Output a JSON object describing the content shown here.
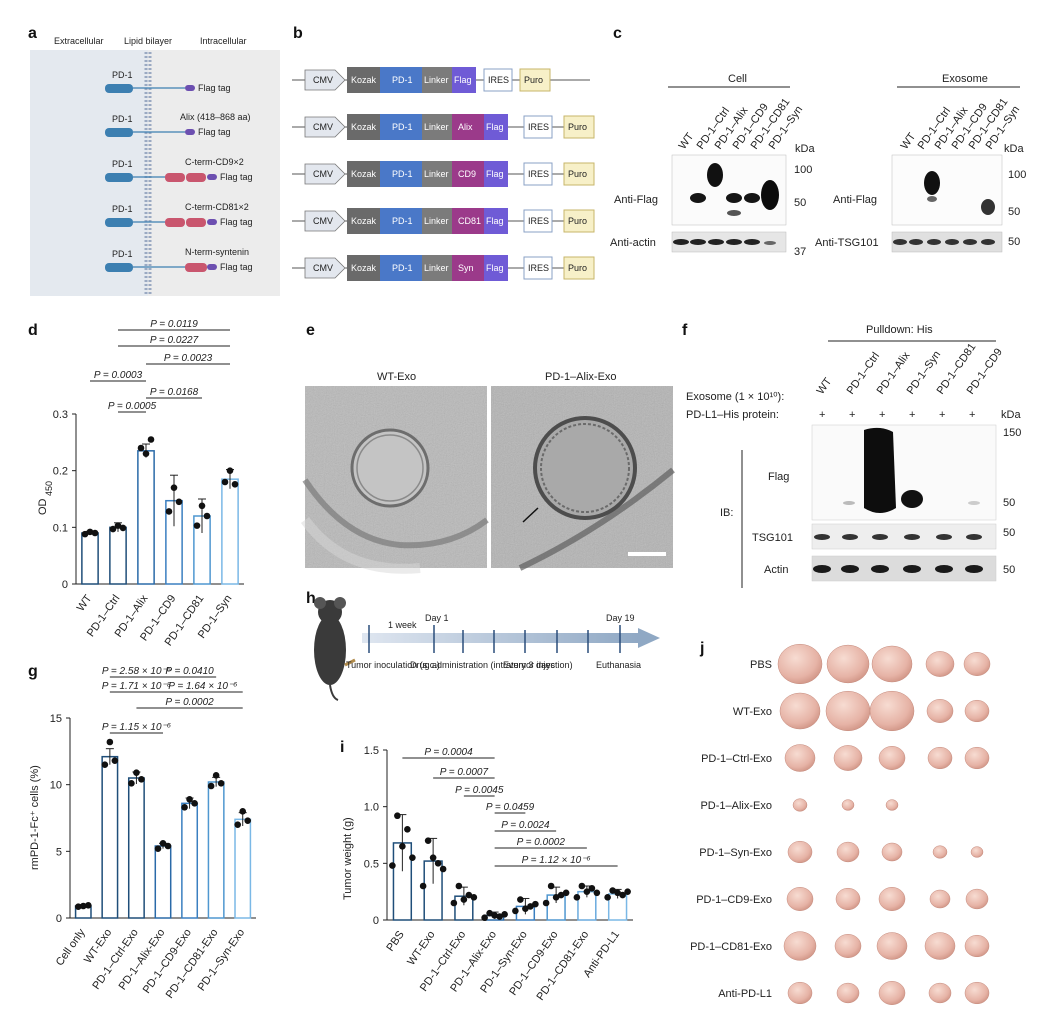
{
  "colors": {
    "pd1": "#3c7fb1",
    "red": "#c9566e",
    "flag": "#6c4fb0",
    "kozak": "#6a6a6a",
    "pd1box": "#4a78c8",
    "alix": "#9b3a8a",
    "ires": "#ffffff",
    "puro": "#f7f0c8",
    "bar1": "#1f4e79",
    "bar2": "#4f97d0",
    "bar3": "#7ab8e6"
  },
  "panels": {
    "a": "a",
    "b": "b",
    "c": "c",
    "d": "d",
    "e": "e",
    "f": "f",
    "g": "g",
    "h": "h",
    "i": "i",
    "j": "j"
  },
  "a": {
    "headers": [
      "Extracellular",
      "Lipid bilayer",
      "Intracellular"
    ],
    "rows": [
      {
        "pd1": "PD-1",
        "label1": "",
        "label2": "Flag tag"
      },
      {
        "pd1": "PD-1",
        "label1": "Alix (418–868 aa)",
        "label2": "Flag tag"
      },
      {
        "pd1": "PD-1",
        "label1": "C-term-CD9×2",
        "label2": "Flag tag"
      },
      {
        "pd1": "PD-1",
        "label1": "C-term-CD81×2",
        "label2": "Flag tag"
      },
      {
        "pd1": "PD-1",
        "label1": "N-term-syntenin",
        "label2": "Flag tag"
      }
    ]
  },
  "b": {
    "common": {
      "cmv": "CMV",
      "kozak": "Kozak",
      "pd1": "PD-1",
      "linker": "Linker",
      "ires": "IRES",
      "puro": "Puro",
      "flag": "Flag"
    },
    "inserts": [
      "Alix",
      "CD9",
      "CD81",
      "Syn"
    ]
  },
  "c": {
    "cell_title": "Cell",
    "exo_title": "Exosome",
    "lanes": [
      "WT",
      "PD-1–Ctrl",
      "PD-1–Alix",
      "PD-1–CD9",
      "PD-1–CD81",
      "PD-1–Syn"
    ],
    "kda": "kDa",
    "anti_flag": "Anti-Flag",
    "anti_actin": "Anti-actin",
    "anti_tsg": "Anti-TSG101",
    "cell_markers": [
      "100",
      "50",
      "37"
    ],
    "exo_markers": [
      "100",
      "50",
      "50"
    ]
  },
  "d": {
    "ylabel_main": "OD",
    "ylabel_sub": "450",
    "pvalues": [
      "P = 0.0119",
      "P = 0.0227",
      "P = 0.0023",
      "P = 0.0003",
      "P = 0.0168",
      "P = 0.0005"
    ],
    "chart_data": {
      "type": "bar",
      "categories": [
        "WT",
        "PD-1–Ctrl",
        "PD-1–Alix",
        "PD-1–CD9",
        "PD-1–CD81",
        "PD-1–Syn"
      ],
      "values": [
        0.09,
        0.1,
        0.235,
        0.147,
        0.12,
        0.185
      ],
      "ylim": [
        0,
        0.3
      ],
      "yticks": [
        "0",
        "0.1",
        "0.2",
        "0.3"
      ]
    }
  },
  "e": {
    "left": "WT-Exo",
    "right": "PD-1–Alix-Exo"
  },
  "f": {
    "pulldown": "Pulldown: His",
    "exosome_label": "Exosome (1 × 10¹⁰):",
    "protein_label": "PD-L1–His protein:",
    "lanes": [
      "WT",
      "PD-1–Ctrl",
      "PD-1–Alix",
      "PD-1–Syn",
      "PD-1–CD81",
      "PD-1–CD9"
    ],
    "plus": "+",
    "kda": "kDa",
    "rows": [
      "Flag",
      "TSG101",
      "Actin"
    ],
    "ib": "IB:",
    "markers": [
      "150",
      "50",
      "50",
      "50"
    ]
  },
  "g": {
    "ylabel": "rmPD-1-Fc⁺ cells (%)",
    "pvalues": [
      "P = 2.58 × 10⁻⁶",
      "P = 0.0410",
      "P = 1.71 × 10⁻⁸",
      "P = 1.64 × 10⁻⁶",
      "P = 0.0002",
      "P = 1.15 × 10⁻⁶"
    ],
    "chart_data": {
      "type": "bar",
      "categories": [
        "Cell only",
        "WT-Exo",
        "PD-1–Ctrl-Exo",
        "PD-1–Alix-Exo",
        "PD-1–CD9-Exo",
        "PD-1–CD81-Exo",
        "PD-1–Syn-Exo"
      ],
      "values": [
        0.9,
        12.1,
        10.5,
        5.4,
        8.6,
        10.2,
        7.4
      ],
      "ylim": [
        0,
        15
      ],
      "yticks": [
        "0",
        "5",
        "10",
        "15"
      ]
    }
  },
  "h": {
    "day1": "Day 1",
    "day19": "Day 19",
    "week": "1 week",
    "tumor": "Tumor inoculation (s.c.)",
    "drug": "Drug administration (intratumor injection)",
    "every": "Every 3 days",
    "euth": "Euthanasia"
  },
  "i": {
    "ylabel": "Tumor weight (g)",
    "pvalues": [
      "P = 0.0004",
      "P = 0.0007",
      "P = 0.0045",
      "P = 0.0459",
      "P = 0.0024",
      "P = 0.0002",
      "P = 1.12 × 10⁻⁶"
    ],
    "chart_data": {
      "type": "bar",
      "categories": [
        "PBS",
        "WT-Exo",
        "PD-1–Ctrl-Exo",
        "PD-1–Alix-Exo",
        "PD-1–Syn-Exo",
        "PD-1–CD9-Exo",
        "PD-1–CD81-Exo",
        "Anti-PD-L1"
      ],
      "values": [
        0.68,
        0.52,
        0.21,
        0.04,
        0.12,
        0.22,
        0.25,
        0.23
      ],
      "ylim": [
        0,
        1.5
      ],
      "yticks": [
        "0",
        "0.5",
        "1.0",
        "1.5"
      ]
    }
  },
  "j": {
    "rows": [
      "PBS",
      "WT-Exo",
      "PD-1–Ctrl-Exo",
      "PD-1–Alix-Exo",
      "PD-1–Syn-Exo",
      "PD-1–CD9-Exo",
      "PD-1–CD81-Exo",
      "Anti-PD-L1"
    ]
  }
}
